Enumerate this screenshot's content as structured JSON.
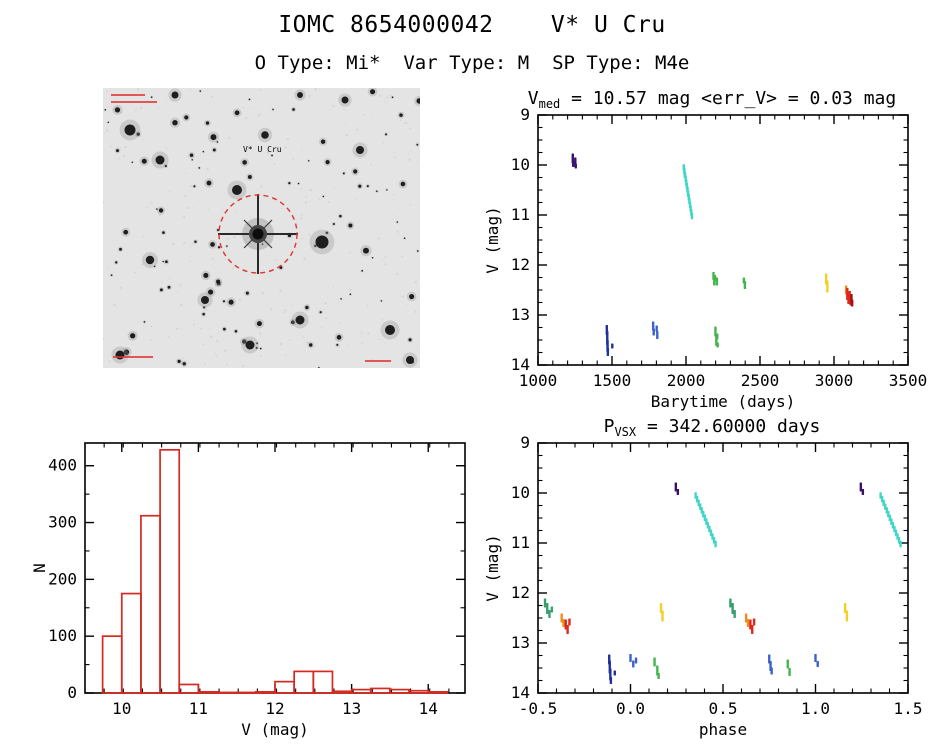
{
  "header": {
    "title": "IOMC 8654000042    V* U Cru",
    "subtitle": "O Type: Mi*  Var Type: M  SP Type: M4e"
  },
  "finding_chart": {
    "center_label": "V* U Cru",
    "aperture_color": "#e03232",
    "background": "#e4e4e4"
  },
  "chart_data": [
    {
      "id": "lightcurve",
      "type": "scatter",
      "title": {
        "pre": "V",
        "sub": "med",
        "post": " = 10.57 mag <err_V> = 0.03 mag"
      },
      "xlabel": "Barytime (days)",
      "ylabel": "V (mag)",
      "xlim": [
        1000,
        3500
      ],
      "ylim": [
        9,
        14
      ],
      "xticks": [
        1000,
        1500,
        2000,
        2500,
        3000,
        3500
      ],
      "xtick_labels": [
        "1000",
        "1500",
        "2000",
        "2500",
        "3000",
        "3500"
      ],
      "xminor": 100,
      "yticks": [
        9,
        10,
        11,
        12,
        13,
        14
      ],
      "ytick_labels": [
        "9",
        "10",
        "11",
        "12",
        "13",
        "14"
      ],
      "yminor": 0.25,
      "marks_format": [
        "x",
        "y",
        "half_height_mag",
        "color"
      ],
      "marks": [
        [
          1235,
          9.87,
          0.1,
          "#38106e"
        ],
        [
          1238,
          9.98,
          0.06,
          "#38106e"
        ],
        [
          1252,
          9.93,
          0.08,
          "#38106e"
        ],
        [
          1255,
          10.02,
          0.05,
          "#38106e"
        ],
        [
          1465,
          13.3,
          0.1,
          "#22309c"
        ],
        [
          1468,
          13.46,
          0.14,
          "#22309c"
        ],
        [
          1470,
          13.62,
          0.12,
          "#22309c"
        ],
        [
          1472,
          13.74,
          0.08,
          "#22309c"
        ],
        [
          1502,
          13.62,
          0.05,
          "#22309c"
        ],
        [
          1778,
          13.22,
          0.09,
          "#3a62c9"
        ],
        [
          1782,
          13.34,
          0.07,
          "#3a62c9"
        ],
        [
          1802,
          13.27,
          0.06,
          "#3a62c9"
        ],
        [
          1806,
          13.4,
          0.08,
          "#3a62c9"
        ],
        [
          1992,
          10.2,
          0.06,
          "#3fd6c8"
        ],
        [
          2186,
          12.22,
          0.08,
          "#44b44c"
        ],
        [
          2191,
          12.31,
          0.1,
          "#44b44c"
        ],
        [
          2196,
          12.26,
          0.06,
          "#44b44c"
        ],
        [
          2209,
          12.33,
          0.08,
          "#44b44c"
        ],
        [
          2199,
          13.33,
          0.1,
          "#44b44c"
        ],
        [
          2205,
          13.5,
          0.12,
          "#44b44c"
        ],
        [
          2211,
          13.43,
          0.06,
          "#44b44c"
        ],
        [
          2214,
          13.6,
          0.05,
          "#44b44c"
        ],
        [
          2391,
          12.31,
          0.06,
          "#44b44c"
        ],
        [
          2398,
          12.4,
          0.08,
          "#44b44c"
        ],
        [
          2947,
          12.28,
          0.11,
          "#f2d024"
        ],
        [
          2955,
          12.43,
          0.12,
          "#f2d024"
        ],
        [
          3082,
          12.5,
          0.09,
          "#ef8c1a"
        ],
        [
          3090,
          12.58,
          0.12,
          "#e0271c"
        ],
        [
          3098,
          12.66,
          0.12,
          "#e0271c"
        ],
        [
          3106,
          12.62,
          0.1,
          "#e0271c"
        ],
        [
          3112,
          12.72,
          0.09,
          "#e0271c"
        ],
        [
          3118,
          12.68,
          0.1,
          "#a31212"
        ],
        [
          3123,
          12.76,
          0.07,
          "#a31212"
        ]
      ],
      "streaks_format": [
        "x1",
        "y1",
        "x2",
        "y2",
        "n_points",
        "color"
      ],
      "streaks": [
        [
          1985,
          10.05,
          2040,
          11.02,
          14,
          "#3fd6c8"
        ]
      ]
    },
    {
      "id": "histogram",
      "type": "histogram",
      "xlabel": "V (mag)",
      "ylabel": "N",
      "xlim": [
        9.52,
        14.48
      ],
      "ylim": [
        440,
        0
      ],
      "xticks": [
        10,
        11,
        12,
        13,
        14
      ],
      "xtick_labels": [
        "10",
        "11",
        "12",
        "13",
        "14"
      ],
      "xminor": 0.25,
      "yticks": [
        0,
        100,
        200,
        300,
        400
      ],
      "ytick_labels": [
        "0",
        "100",
        "200",
        "300",
        "400"
      ],
      "yminor": 50,
      "bar_color": "#d42a20",
      "bins": {
        "start": 9.75,
        "step": 0.25,
        "counts": [
          100,
          175,
          312,
          428,
          15,
          2,
          1,
          1,
          2,
          20,
          38,
          38,
          3,
          6,
          8,
          6,
          4,
          2
        ]
      }
    },
    {
      "id": "phase",
      "type": "scatter",
      "title": {
        "pre": "P",
        "sub": "VSX",
        "post": " = 342.60000 days"
      },
      "xlabel": "phase",
      "ylabel": "V (mag)",
      "xlim": [
        -0.5,
        1.5
      ],
      "ylim": [
        9,
        14
      ],
      "xticks": [
        -0.5,
        0.0,
        0.5,
        1.0,
        1.5
      ],
      "xtick_labels": [
        "-0.5",
        "0.0",
        "0.5",
        "1.0",
        "1.5"
      ],
      "xminor": 0.1,
      "yticks": [
        9,
        10,
        11,
        12,
        13,
        14
      ],
      "ytick_labels": [
        "9",
        "10",
        "11",
        "12",
        "13",
        "14"
      ],
      "yminor": 0.25,
      "marks_format": [
        "x",
        "y",
        "half_height_mag",
        "color"
      ],
      "marks": [
        [
          -0.462,
          12.2,
          0.09,
          "#35a06e"
        ],
        [
          -0.45,
          12.31,
          0.11,
          "#35a06e"
        ],
        [
          -0.438,
          12.42,
          0.08,
          "#35a06e"
        ],
        [
          -0.425,
          12.33,
          0.06,
          "#35a06e"
        ],
        [
          -0.372,
          12.5,
          0.09,
          "#ef8c1a"
        ],
        [
          -0.362,
          12.6,
          0.08,
          "#ef8c1a"
        ],
        [
          -0.35,
          12.63,
          0.1,
          "#e0271c"
        ],
        [
          -0.34,
          12.73,
          0.09,
          "#e0271c"
        ],
        [
          -0.33,
          12.58,
          0.07,
          "#e0271c"
        ],
        [
          -0.115,
          13.33,
          0.1,
          "#22309c"
        ],
        [
          -0.112,
          13.48,
          0.13,
          "#22309c"
        ],
        [
          -0.109,
          13.63,
          0.12,
          "#22309c"
        ],
        [
          -0.106,
          13.75,
          0.07,
          "#22309c"
        ],
        [
          -0.085,
          13.6,
          0.05,
          "#22309c"
        ],
        [
          0.0,
          13.3,
          0.08,
          "#3a62c9"
        ],
        [
          0.015,
          13.42,
          0.07,
          "#3a62c9"
        ],
        [
          0.03,
          13.35,
          0.06,
          "#3a62c9"
        ],
        [
          0.13,
          13.38,
          0.09,
          "#44b44c"
        ],
        [
          0.145,
          13.55,
          0.1,
          "#44b44c"
        ],
        [
          0.152,
          13.66,
          0.06,
          "#44b44c"
        ],
        [
          0.165,
          12.3,
          0.1,
          "#f2d024"
        ],
        [
          0.173,
          12.46,
          0.11,
          "#f2d024"
        ],
        [
          0.245,
          9.88,
          0.09,
          "#38106e"
        ],
        [
          0.256,
          9.98,
          0.06,
          "#38106e"
        ],
        [
          0.54,
          12.2,
          0.09,
          "#35a06e"
        ],
        [
          0.552,
          12.31,
          0.11,
          "#35a06e"
        ],
        [
          0.563,
          12.42,
          0.08,
          "#35a06e"
        ],
        [
          0.625,
          12.5,
          0.09,
          "#ef8c1a"
        ],
        [
          0.635,
          12.6,
          0.08,
          "#ef8c1a"
        ],
        [
          0.648,
          12.63,
          0.1,
          "#e0271c"
        ],
        [
          0.658,
          12.73,
          0.09,
          "#e0271c"
        ],
        [
          0.668,
          12.58,
          0.07,
          "#e0271c"
        ],
        [
          0.75,
          13.32,
          0.09,
          "#3a62c9"
        ],
        [
          0.757,
          13.46,
          0.1,
          "#3a62c9"
        ],
        [
          0.763,
          13.56,
          0.07,
          "#3a62c9"
        ],
        [
          0.85,
          13.42,
          0.09,
          "#44b44c"
        ],
        [
          0.86,
          13.58,
          0.08,
          "#44b44c"
        ],
        [
          1.0,
          13.3,
          0.08,
          "#3a62c9"
        ],
        [
          1.012,
          13.42,
          0.06,
          "#3a62c9"
        ],
        [
          1.16,
          12.3,
          0.1,
          "#f2d024"
        ],
        [
          1.17,
          12.46,
          0.11,
          "#f2d024"
        ],
        [
          1.245,
          9.88,
          0.09,
          "#38106e"
        ],
        [
          1.256,
          9.98,
          0.06,
          "#38106e"
        ]
      ],
      "streaks_format": [
        "x1",
        "y1",
        "x2",
        "y2",
        "n_points",
        "color"
      ],
      "streaks": [
        [
          0.352,
          10.05,
          0.46,
          11.02,
          14,
          "#3fd6c8"
        ],
        [
          1.352,
          10.05,
          1.46,
          11.02,
          14,
          "#3fd6c8"
        ]
      ]
    }
  ]
}
